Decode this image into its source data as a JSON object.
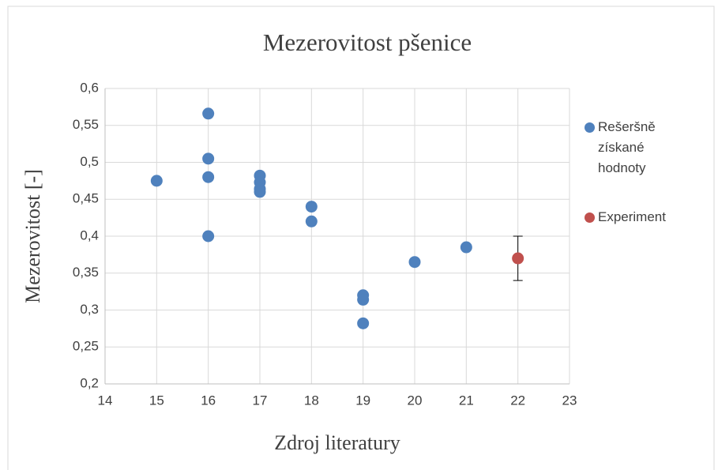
{
  "chart_data": {
    "type": "scatter",
    "title": "Mezerovitost pšenice",
    "x_label": "Zdroj literatury",
    "y_label": "Mezerovitost [-]",
    "series": [
      {
        "name": "Rešeršně získané hodnoty",
        "color": "#4f81bd",
        "x": [
          15,
          16,
          16,
          16,
          16,
          17,
          17,
          17,
          17,
          18,
          18,
          19,
          19,
          19,
          20,
          21
        ],
        "values": [
          0.475,
          0.566,
          0.505,
          0.48,
          0.4,
          0.482,
          0.473,
          0.464,
          0.46,
          0.44,
          0.42,
          0.32,
          0.314,
          0.282,
          0.365,
          0.385
        ]
      },
      {
        "name": "Experiment",
        "color": "#c0504d",
        "x": [
          22
        ],
        "values": [
          0.37
        ],
        "errors": [
          0.03
        ]
      }
    ],
    "xlim": [
      14,
      23
    ],
    "xticks": [
      14,
      15,
      16,
      17,
      18,
      19,
      20,
      21,
      22,
      23
    ],
    "ylim": [
      0.2,
      0.6
    ],
    "yticks": [
      {
        "value": 0.2,
        "label": "0,2"
      },
      {
        "value": 0.25,
        "label": "0,25"
      },
      {
        "value": 0.3,
        "label": "0,3"
      },
      {
        "value": 0.35,
        "label": "0,35"
      },
      {
        "value": 0.4,
        "label": "0,4"
      },
      {
        "value": 0.45,
        "label": "0,45"
      },
      {
        "value": 0.5,
        "label": "0,5"
      },
      {
        "value": 0.55,
        "label": "0,55"
      },
      {
        "value": 0.6,
        "label": "0,6"
      }
    ],
    "grid": true,
    "legend": "right"
  }
}
